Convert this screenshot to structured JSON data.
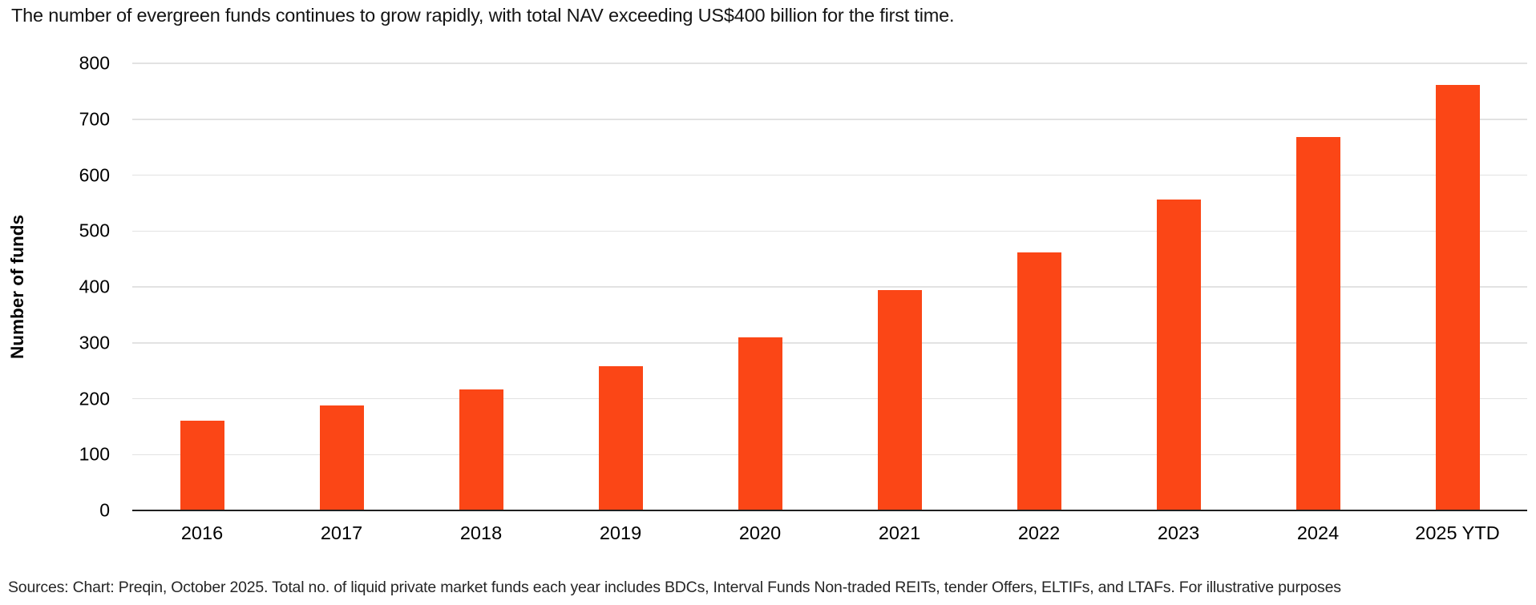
{
  "header": {
    "title": "The number of evergreen funds continues to grow rapidly, with total NAV exceeding US$400 billion for the first time."
  },
  "chart_data": {
    "type": "bar",
    "title": "The number of evergreen funds continues to grow rapidly, with total NAV exceeding US$400 billion for the first time.",
    "categories": [
      "2016",
      "2017",
      "2018",
      "2019",
      "2020",
      "2021",
      "2022",
      "2023",
      "2024",
      "2025 YTD"
    ],
    "values": [
      160,
      188,
      216,
      258,
      310,
      394,
      462,
      556,
      668,
      761
    ],
    "xlabel": "",
    "ylabel": "Number of funds",
    "ylim": [
      0,
      800
    ],
    "ytick_step": 100,
    "grid": true,
    "legend": "none",
    "colors": {
      "bar": "#FB4616",
      "gridline": "#e2e2e2",
      "axis_line": "#1f1f1f",
      "text": "#000000"
    }
  },
  "footer": {
    "source": "Sources: Chart: Preqin, October 2025. Total no. of liquid private market funds each year includes BDCs, Interval Funds Non-traded REITs, tender Offers, ELTIFs, and LTAFs. For illustrative purposes"
  }
}
